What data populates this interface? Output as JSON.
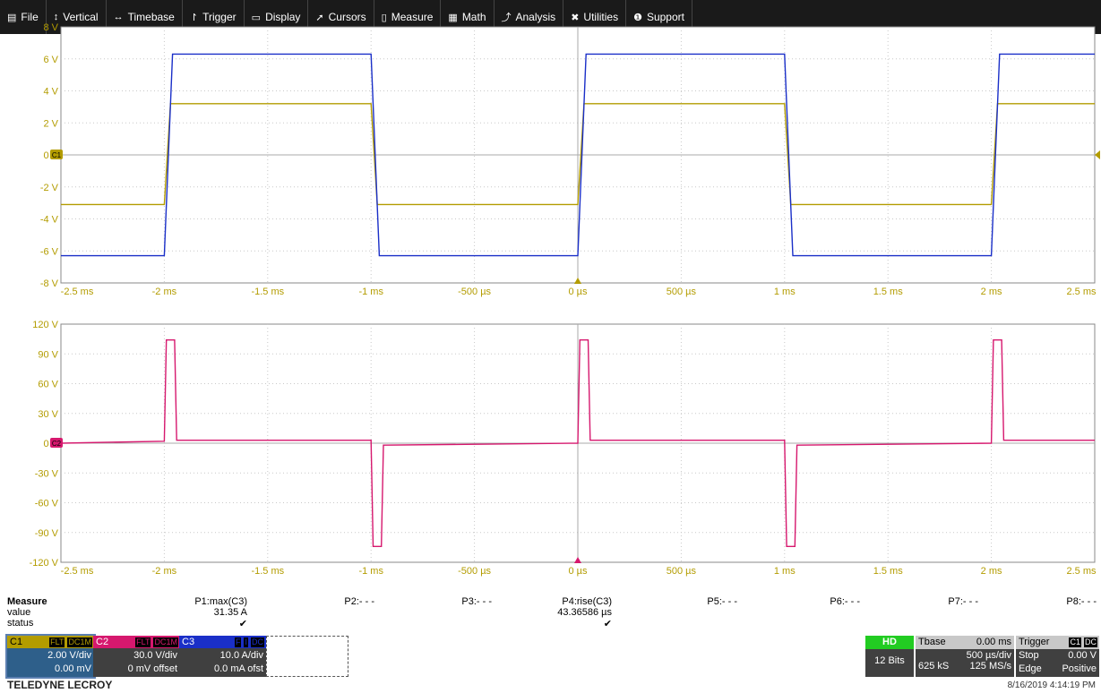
{
  "menu": [
    {
      "icon": "file-icon",
      "glyph": "▤",
      "label": "File"
    },
    {
      "icon": "vertical-icon",
      "glyph": "↕",
      "label": "Vertical"
    },
    {
      "icon": "timebase-icon",
      "glyph": "↔",
      "label": "Timebase"
    },
    {
      "icon": "trigger-icon",
      "glyph": "↾",
      "label": "Trigger"
    },
    {
      "icon": "display-icon",
      "glyph": "▭",
      "label": "Display"
    },
    {
      "icon": "cursors-icon",
      "glyph": "➚",
      "label": "Cursors"
    },
    {
      "icon": "measure-icon",
      "glyph": "▯",
      "label": "Measure"
    },
    {
      "icon": "math-icon",
      "glyph": "▦",
      "label": "Math"
    },
    {
      "icon": "analysis-icon",
      "glyph": "⤴",
      "label": "Analysis"
    },
    {
      "icon": "utilities-icon",
      "glyph": "✖",
      "label": "Utilities"
    },
    {
      "icon": "support-icon",
      "glyph": "❶",
      "label": "Support"
    }
  ],
  "chart_data": [
    {
      "type": "line",
      "y_ticks": [
        "8 V",
        "6 V",
        "4 V",
        "2 V",
        "0 V",
        "-2 V",
        "-4 V",
        "-6 V",
        "-8 V"
      ],
      "x_ticks": [
        "-2.5 ms",
        "-2 ms",
        "-1.5 ms",
        "-1 ms",
        "-500 µs",
        "0 µs",
        "500 µs",
        "1 ms",
        "1.5 ms",
        "2 ms",
        "2.5 ms"
      ],
      "ylim": [
        -8,
        8
      ],
      "xlim_ms": [
        -2.5,
        2.5
      ],
      "marker_label": "C1",
      "series": [
        {
          "name": "C1",
          "color": "#b39c00",
          "x_ms": [
            -2.5,
            -2.0,
            -1.97,
            -1.0,
            -0.97,
            0.0,
            0.03,
            1.0,
            1.03,
            2.0,
            2.03,
            2.5
          ],
          "y": [
            -3.1,
            -3.1,
            3.2,
            3.2,
            -3.1,
            -3.1,
            3.2,
            3.2,
            -3.1,
            -3.1,
            3.2,
            3.2
          ]
        },
        {
          "name": "C3",
          "color": "#1a2fc8",
          "x_ms": [
            -2.5,
            -2.0,
            -1.96,
            -1.0,
            -0.96,
            0.0,
            0.04,
            1.0,
            1.04,
            2.0,
            2.04,
            2.5
          ],
          "y": [
            -6.3,
            -6.3,
            6.3,
            6.3,
            -6.3,
            -6.3,
            6.3,
            6.3,
            -6.3,
            -6.3,
            6.3,
            6.3
          ]
        }
      ]
    },
    {
      "type": "line",
      "y_ticks": [
        "120 V",
        "90 V",
        "60 V",
        "30 V",
        "0 V",
        "-30 V",
        "-60 V",
        "-90 V",
        "-120 V"
      ],
      "x_ticks": [
        "-2.5 ms",
        "-2 ms",
        "-1.5 ms",
        "-1 ms",
        "-500 µs",
        "0 µs",
        "500 µs",
        "1 ms",
        "1.5 ms",
        "2 ms",
        "2.5 ms"
      ],
      "ylim": [
        -120,
        120
      ],
      "xlim_ms": [
        -2.5,
        2.5
      ],
      "marker_label": "C2",
      "series": [
        {
          "name": "C2",
          "color": "#d6186e",
          "x_ms": [
            -2.5,
            -2.0,
            -1.99,
            -1.95,
            -1.94,
            -1.0,
            -0.99,
            -0.95,
            -0.94,
            0.0,
            0.01,
            0.05,
            0.06,
            1.0,
            1.01,
            1.05,
            1.06,
            2.0,
            2.01,
            2.05,
            2.06,
            2.5
          ],
          "y": [
            0,
            2,
            104,
            104,
            3,
            3,
            -104,
            -104,
            -2,
            0,
            104,
            104,
            3,
            3,
            -104,
            -104,
            -2,
            0,
            104,
            104,
            3,
            3
          ]
        }
      ]
    }
  ],
  "measure": {
    "title": "Measure",
    "row_value": "value",
    "row_status": "status",
    "params": [
      {
        "label": "P1:max(C3)",
        "value": "31.35 A",
        "status": "✔"
      },
      {
        "label": "P2:- - -",
        "value": "",
        "status": ""
      },
      {
        "label": "P3:- - -",
        "value": "",
        "status": ""
      },
      {
        "label": "P4:rise(C3)",
        "value": "43.36586 µs",
        "status": "✔"
      },
      {
        "label": "P5:- - -",
        "value": "",
        "status": ""
      },
      {
        "label": "P6:- - -",
        "value": "",
        "status": ""
      },
      {
        "label": "P7:- - -",
        "value": "",
        "status": ""
      },
      {
        "label": "P8:- - -",
        "value": "",
        "status": ""
      }
    ]
  },
  "channels": [
    {
      "id": "C1",
      "tags": [
        "FLT",
        "DC1M"
      ],
      "line1": "2.00 V/div",
      "line2": "0.00 mV",
      "color": "#b39c00",
      "head_text": "#000"
    },
    {
      "id": "C2",
      "tags": [
        "FLT",
        "DC1M"
      ],
      "line1": "30.0 V/div",
      "line2": "0 mV offset",
      "color": "#d6186e",
      "head_text": "#fff"
    },
    {
      "id": "C3",
      "tags": [
        "F",
        "I",
        "DC"
      ],
      "line1": "10.0 A/div",
      "line2": "0.0 mA ofst",
      "color": "#1a2fc8",
      "head_text": "#fff"
    }
  ],
  "hd": {
    "badge": "HD",
    "bits": "12 Bits"
  },
  "timebase": {
    "label": "Tbase",
    "delay": "0.00 ms",
    "per_div": "500 µs/div",
    "samples": "625 kS",
    "rate": "125 MS/s"
  },
  "trigger": {
    "label": "Trigger",
    "ch": "C1",
    "coupling": "DC",
    "mode": "Stop",
    "level": "0.00 V",
    "type": "Edge",
    "slope": "Positive"
  },
  "brand": "TELEDYNE LECROY",
  "datetime": "8/16/2019 4:14:19 PM"
}
